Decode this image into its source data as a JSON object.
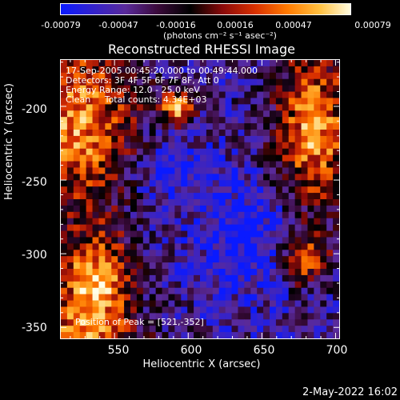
{
  "colorbar": {
    "tick_labels": [
      "-0.00079",
      "-0.00047",
      "-0.00016",
      "0.00016",
      "0.00047",
      "0.00079"
    ],
    "units": "(photons cm⁻² s⁻¹ asec⁻²)",
    "colors": [
      "#0a1aff",
      "#3322cc",
      "#5a2a9a",
      "#3a0a3a",
      "#000000",
      "#8a0a0a",
      "#d83000",
      "#ff7a00",
      "#ffc040",
      "#ffffe8"
    ]
  },
  "chart_data": {
    "type": "heatmap",
    "title": "Reconstructed RHESSI Image",
    "xlabel": "Heliocentric X (arcsec)",
    "ylabel": "Heliocentric Y (arcsec)",
    "xlim": [
      513,
      703
    ],
    "ylim": [
      -358,
      -168
    ],
    "x_ticks": [
      550,
      600,
      650,
      700
    ],
    "y_ticks": [
      -200,
      -250,
      -300,
      -350
    ],
    "x_tick_labels": [
      "550",
      "600",
      "650",
      "700"
    ],
    "y_tick_labels": [
      "-200",
      "-250",
      "-300",
      "-350"
    ],
    "peak_position": [
      521,
      -352
    ],
    "total_counts": "4.34E+03",
    "energy_range_kev": [
      12.0,
      25.0
    ]
  },
  "overlay": {
    "time_range": "17-Sep-2005 00:45:20.000 to 00:49:44.000",
    "detectors": "Detectors: 3F 4F 5F 6F 7F 8F, Att 0",
    "energy": "Energy Range: 12.0 - 25.0 keV",
    "method": "Clean     Total counts: 4.34E+03",
    "peak": "Position of Peak = [521,-352]"
  },
  "timestamp": "2-May-2022 16:02"
}
